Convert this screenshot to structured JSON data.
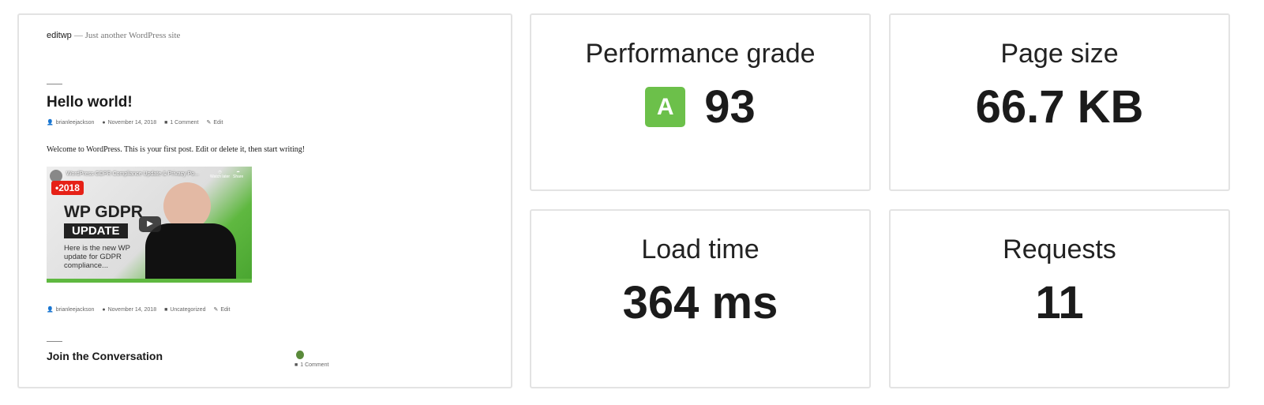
{
  "preview": {
    "site_name": "editwp",
    "tagline": "— Just another WordPress site",
    "post_title": "Hello world!",
    "meta_top": {
      "author": "brianleejackson",
      "date": "November 14, 2018",
      "comments": "1 Comment",
      "edit": "Edit"
    },
    "body": "Welcome to WordPress. This is your first post. Edit or delete it, then start writing!",
    "video": {
      "title": "WordPress GDPR Compliance Update & Privacy Po...",
      "badge": "•2018",
      "headline1": "WP GDPR",
      "headline2": "UPDATE",
      "subtitle": "Here is the new WP update for GDPR compliance...",
      "watch_later": "Watch later",
      "share": "Share"
    },
    "meta_bottom": {
      "author": "brianleejackson",
      "date": "November 14, 2018",
      "category": "Uncategorized",
      "edit": "Edit"
    },
    "conversation_title": "Join the Conversation",
    "conversation_comments": "1 Comment"
  },
  "metrics": {
    "performance": {
      "label": "Performance grade",
      "grade": "A",
      "score": "93",
      "grade_color": "#6cc04a"
    },
    "page_size": {
      "label": "Page size",
      "value": "66.7 KB"
    },
    "load_time": {
      "label": "Load time",
      "value": "364 ms"
    },
    "requests": {
      "label": "Requests",
      "value": "11"
    }
  }
}
